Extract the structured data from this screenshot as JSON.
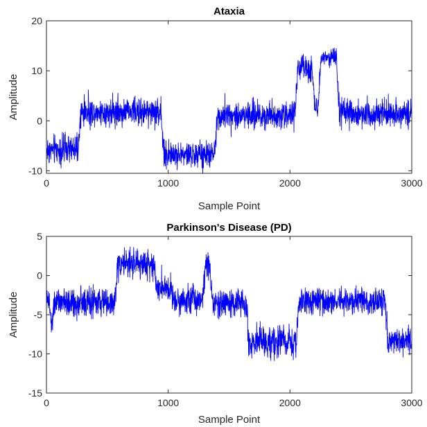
{
  "chart_data": [
    {
      "type": "line",
      "title": "Ataxia",
      "xlabel": "Sample Point",
      "ylabel": "Amplitude",
      "xlim": [
        0,
        3000
      ],
      "ylim": [
        -10.5,
        20
      ],
      "xticks": [
        0,
        1000,
        2000,
        3000
      ],
      "yticks": [
        -10,
        0,
        10,
        20
      ],
      "grid": false,
      "series": [
        {
          "color": "#0000ff",
          "segments": [
            {
              "x_start": 0,
              "x_end": 260,
              "mean": -5.8,
              "noise": 2.2
            },
            {
              "x_start": 260,
              "x_end": 940,
              "mean": 1.8,
              "noise": 2.0
            },
            {
              "x_start": 940,
              "x_end": 1380,
              "mean": -6.8,
              "noise": 1.9
            },
            {
              "x_start": 1380,
              "x_end": 2040,
              "mean": 1.2,
              "noise": 2.0
            },
            {
              "x_start": 2040,
              "x_end": 2180,
              "mean": 10.5,
              "noise": 2.0
            },
            {
              "x_start": 2180,
              "x_end": 2230,
              "mean": 3.0,
              "noise": 1.5
            },
            {
              "x_start": 2230,
              "x_end": 2380,
              "mean": 12.8,
              "noise": 1.3
            },
            {
              "x_start": 2380,
              "x_end": 3000,
              "mean": 1.5,
              "noise": 2.0
            }
          ]
        }
      ]
    },
    {
      "type": "line",
      "title": "Parkinson's Disease (PD)",
      "xlabel": "Sample Point",
      "ylabel": "Amplitude",
      "xlim": [
        0,
        3000
      ],
      "ylim": [
        -15,
        5
      ],
      "xticks": [
        0,
        1000,
        2000,
        3000
      ],
      "yticks": [
        -15,
        -10,
        -5,
        0,
        5
      ],
      "grid": false,
      "series": [
        {
          "color": "#0000ff",
          "segments": [
            {
              "x_start": 0,
              "x_end": 20,
              "mean": -3.2,
              "noise": 1.0
            },
            {
              "x_start": 20,
              "x_end": 40,
              "mean": -7.0,
              "noise": 1.2
            },
            {
              "x_start": 40,
              "x_end": 560,
              "mean": -3.5,
              "noise": 1.3
            },
            {
              "x_start": 560,
              "x_end": 880,
              "mean": 1.5,
              "noise": 1.3
            },
            {
              "x_start": 880,
              "x_end": 1020,
              "mean": -1.5,
              "noise": 1.3
            },
            {
              "x_start": 1020,
              "x_end": 1280,
              "mean": -3.0,
              "noise": 1.4
            },
            {
              "x_start": 1280,
              "x_end": 1340,
              "mean": 1.5,
              "noise": 1.2
            },
            {
              "x_start": 1340,
              "x_end": 1640,
              "mean": -3.5,
              "noise": 1.3
            },
            {
              "x_start": 1640,
              "x_end": 2050,
              "mean": -8.5,
              "noise": 1.5
            },
            {
              "x_start": 2050,
              "x_end": 2780,
              "mean": -3.3,
              "noise": 1.3
            },
            {
              "x_start": 2780,
              "x_end": 3000,
              "mean": -8.5,
              "noise": 1.2
            }
          ]
        }
      ]
    }
  ]
}
